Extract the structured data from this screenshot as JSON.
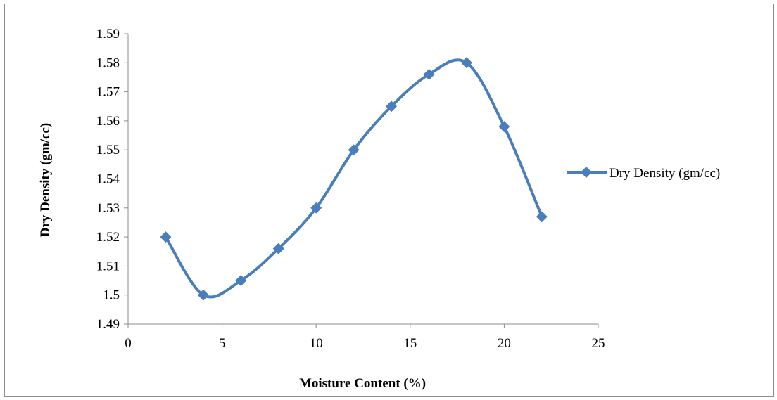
{
  "chart_data": {
    "type": "line",
    "smooth": true,
    "xlabel": "Moisture Content (%)",
    "ylabel": "Dry Density (gm/cc)",
    "xlim": [
      0,
      25
    ],
    "ylim": [
      1.49,
      1.59
    ],
    "x_ticks": [
      0,
      5,
      10,
      15,
      20,
      25
    ],
    "y_ticks": [
      1.49,
      1.5,
      1.51,
      1.52,
      1.53,
      1.54,
      1.55,
      1.56,
      1.57,
      1.58,
      1.59
    ],
    "x_tick_labels": [
      "0",
      "5",
      "10",
      "15",
      "20",
      "25"
    ],
    "y_tick_labels": [
      "1.49",
      "1.5",
      "1.51",
      "1.52",
      "1.53",
      "1.54",
      "1.55",
      "1.56",
      "1.57",
      "1.58",
      "1.59"
    ],
    "grid": false,
    "legend_position": "right",
    "series": [
      {
        "name": "Dry Density (gm/cc)",
        "color": "#4a7ebb",
        "marker": "diamond",
        "x": [
          2,
          4,
          6,
          8,
          10,
          12,
          14,
          16,
          18,
          20,
          22
        ],
        "y": [
          1.52,
          1.5,
          1.505,
          1.516,
          1.53,
          1.55,
          1.565,
          1.576,
          1.58,
          1.558,
          1.527
        ]
      }
    ]
  }
}
